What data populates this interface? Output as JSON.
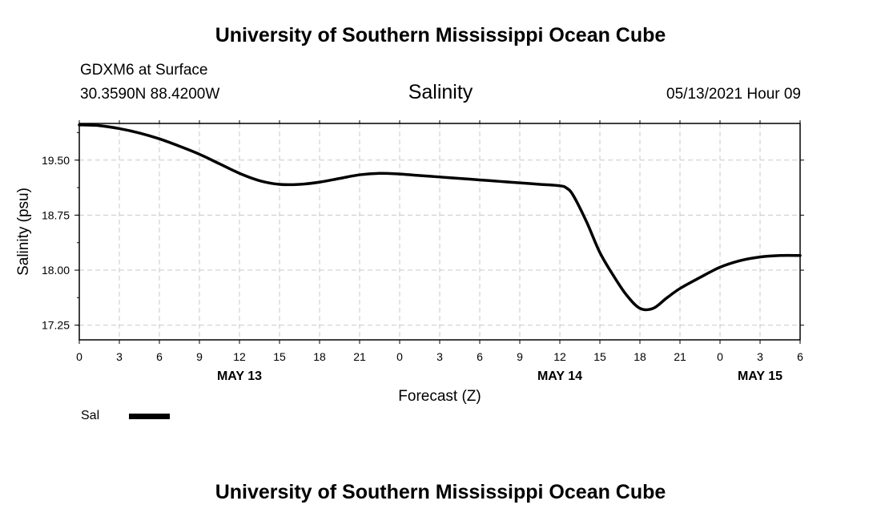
{
  "page": {
    "title_top": "University of Southern Mississippi Ocean Cube",
    "title_bottom": "University of Southern Mississippi Ocean Cube",
    "station": "GDXM6 at Surface",
    "coordinates": "30.3590N  88.4200W",
    "chart_title": "Salinity",
    "datetime": "05/13/2021 Hour 09"
  },
  "chart_data": {
    "type": "line",
    "title": "Salinity",
    "xlabel": "Forecast (Z)",
    "ylabel": "Salinity (psu)",
    "xlim": [
      0,
      54
    ],
    "ylim": [
      17.05,
      20.0
    ],
    "x_unit": "hours from 2021-05-13 00Z",
    "x_tick_labels": [
      "0",
      "3",
      "6",
      "9",
      "12",
      "15",
      "18",
      "21",
      "0",
      "3",
      "6",
      "9",
      "12",
      "15",
      "18",
      "21",
      "0",
      "3",
      "6"
    ],
    "date_labels": [
      {
        "x": 12,
        "label": "MAY 13"
      },
      {
        "x": 36,
        "label": "MAY 14"
      },
      {
        "x": 51,
        "label": "MAY 15"
      }
    ],
    "y_ticks": [
      17.25,
      18.0,
      18.75,
      19.5
    ],
    "y_tick_labels": [
      "17.25",
      "18.00",
      "18.75",
      "19.50"
    ],
    "grid": true,
    "series": [
      {
        "name": "Sal",
        "color": "#000000",
        "x": [
          0,
          1.5,
          3,
          4.5,
          6,
          7.5,
          9,
          10.5,
          12,
          13.5,
          15,
          16.5,
          18,
          19.5,
          21,
          22.5,
          24,
          25.5,
          27,
          28.5,
          30,
          31.5,
          33,
          34.5,
          36,
          36.5,
          37,
          38,
          39,
          40,
          41,
          42,
          43,
          44,
          45,
          46.5,
          48,
          49.5,
          51,
          52.5,
          54
        ],
        "y": [
          19.98,
          19.97,
          19.93,
          19.87,
          19.79,
          19.69,
          19.58,
          19.45,
          19.32,
          19.22,
          19.17,
          19.17,
          19.2,
          19.25,
          19.3,
          19.32,
          19.31,
          19.29,
          19.27,
          19.25,
          19.23,
          19.21,
          19.19,
          19.17,
          19.15,
          19.12,
          19.02,
          18.66,
          18.24,
          17.93,
          17.66,
          17.48,
          17.48,
          17.62,
          17.75,
          17.9,
          18.04,
          18.13,
          18.18,
          18.2,
          18.2
        ]
      }
    ],
    "legend": {
      "label": "Sal",
      "placement": "bottom-left"
    }
  }
}
